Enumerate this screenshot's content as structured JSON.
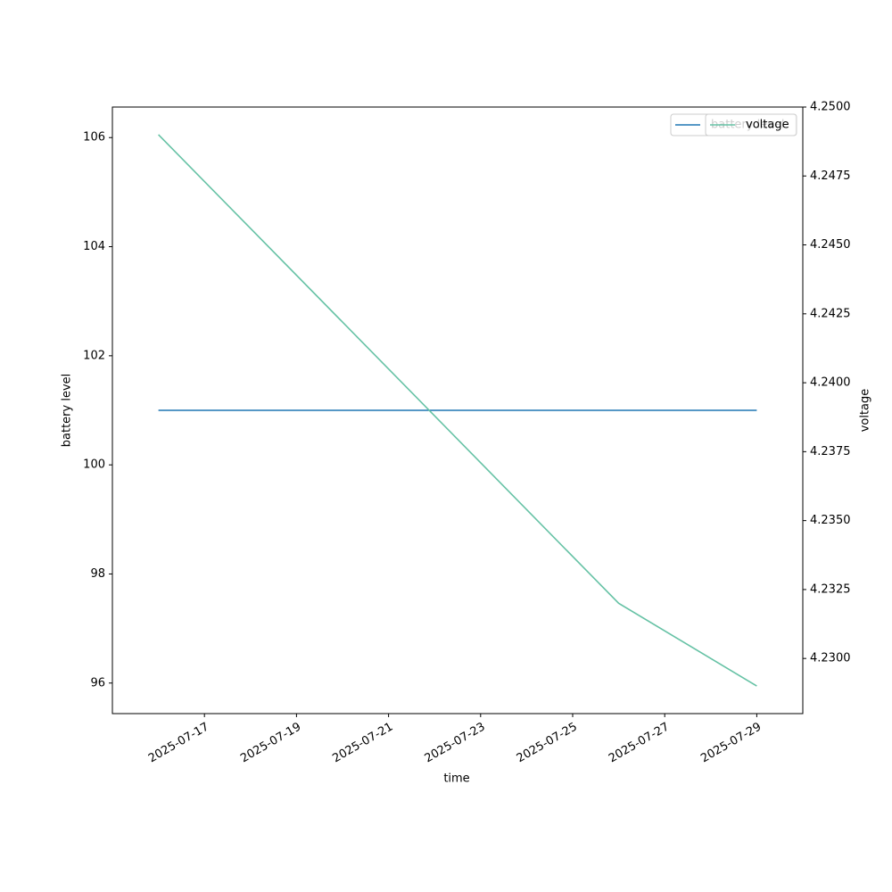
{
  "chart_data": {
    "type": "line",
    "x": [
      "2025-07-16",
      "2025-07-26",
      "2025-07-29"
    ],
    "series": [
      {
        "name": "battery level",
        "color": "#1f77b4",
        "values": [
          101,
          101,
          101
        ]
      },
      {
        "name": "voltage",
        "color": "#66c2a5",
        "axis": "y2",
        "values": [
          4.249,
          4.232,
          4.229
        ]
      }
    ],
    "xlabel": "time",
    "ylabel": "battery level",
    "y2label": "voltage",
    "xlim": [
      "2025-07-15",
      "2025-07-30"
    ],
    "xticks": [
      "2025-07-17",
      "2025-07-19",
      "2025-07-21",
      "2025-07-23",
      "2025-07-25",
      "2025-07-27",
      "2025-07-29"
    ],
    "ylim": [
      95.44,
      106.56
    ],
    "yticks": [
      96,
      98,
      100,
      102,
      104,
      106
    ],
    "y2lim": [
      4.228,
      4.25
    ],
    "y2ticks": [
      {
        "value": 4.23,
        "label": "4.2300"
      },
      {
        "value": 4.2325,
        "label": "4.2325"
      },
      {
        "value": 4.235,
        "label": "4.2350"
      },
      {
        "value": 4.2375,
        "label": "4.2375"
      },
      {
        "value": 4.24,
        "label": "4.2400"
      },
      {
        "value": 4.2425,
        "label": "4.2425"
      },
      {
        "value": 4.245,
        "label": "4.2450"
      },
      {
        "value": 4.2475,
        "label": "4.2475"
      },
      {
        "value": 4.25,
        "label": "4.2500"
      }
    ],
    "legend": "upper right",
    "grid": false
  }
}
